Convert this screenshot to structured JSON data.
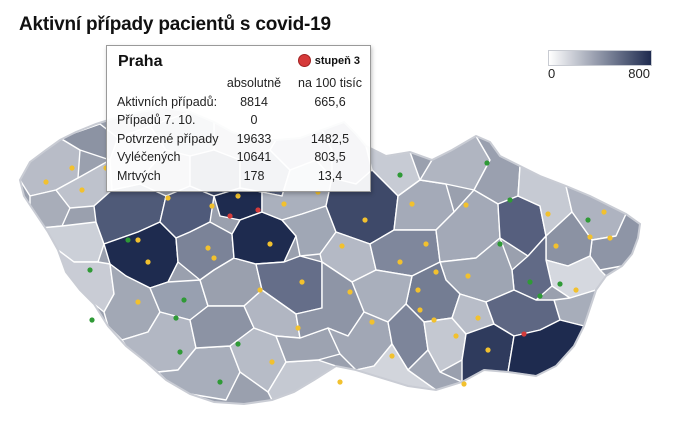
{
  "title": "Aktivní případy pacientů s covid-19",
  "legend": {
    "min": "0",
    "max": "800",
    "color_low": "#ffffff",
    "color_high": "#1e2b4f"
  },
  "tooltip": {
    "region": "Praha",
    "stage": "stupeň 3",
    "stage_color": "#d63a3a",
    "col_absolute": "absolutně",
    "col_per100k": "na 100 tisíc",
    "rows": [
      {
        "label": "Aktivních případů:",
        "absolute": "8814",
        "per100k": "665,6"
      },
      {
        "label": "Případů 7. 10.",
        "absolute": "0",
        "per100k": ""
      },
      {
        "label": "Potvrzené případy",
        "absolute": "19633",
        "per100k": "1482,5"
      },
      {
        "label": "Vyléčených",
        "absolute": "10641",
        "per100k": "803,5"
      },
      {
        "label": "Mrtvých",
        "absolute": "178",
        "per100k": "13,4"
      }
    ]
  },
  "stage_colors": {
    "green": "#2f9a36",
    "yellow": "#f2c12e",
    "red": "#d33b3b"
  }
}
